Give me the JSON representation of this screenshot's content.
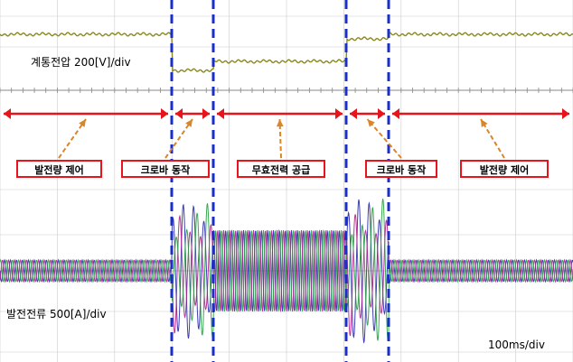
{
  "chart_data": {
    "type": "line",
    "time_scale": "100ms/div",
    "panels": [
      {
        "label": "계통전압 200[V]/div",
        "series": [
          {
            "color": "#8a8a20",
            "segments": [
              {
                "t_start": 0,
                "t_end": 190,
                "level": 0
              },
              {
                "t_start": 190,
                "t_end": 236,
                "level": -40
              },
              {
                "t_start": 236,
                "t_end": 383,
                "level": -30
              },
              {
                "t_start": 383,
                "t_end": 430,
                "level": -5
              },
              {
                "t_start": 430,
                "t_end": 634,
                "level": 0
              }
            ]
          }
        ]
      },
      {
        "label": "발전전류 500[A]/div",
        "series": [
          {
            "color": "#2a2aa8",
            "phase": 0
          },
          {
            "color": "#b0208a",
            "phase": 120
          },
          {
            "color": "#25a040",
            "phase": 240
          }
        ],
        "amplitude_segments": [
          {
            "t_start": 0,
            "t_end": 190,
            "amplitude": 12
          },
          {
            "t_start": 190,
            "t_end": 236,
            "amplitude": 75
          },
          {
            "t_start": 236,
            "t_end": 383,
            "amplitude": 45
          },
          {
            "t_start": 383,
            "t_end": 430,
            "amplitude": 80
          },
          {
            "t_start": 430,
            "t_end": 634,
            "amplitude": 12
          }
        ]
      }
    ],
    "event_markers_t": [
      190,
      236,
      383,
      430
    ],
    "modes": [
      {
        "label": "발전량 제어",
        "t_start": 0,
        "t_end": 190
      },
      {
        "label": "크로바 동작",
        "t_start": 190,
        "t_end": 236
      },
      {
        "label": "무효전력 공급",
        "t_start": 236,
        "t_end": 383
      },
      {
        "label": "크로바 동작",
        "t_start": 383,
        "t_end": 430
      },
      {
        "label": "발전량 제어",
        "t_start": 430,
        "t_end": 634
      }
    ],
    "grid": true,
    "colors": {
      "marker": "#1a2ec8",
      "annotation": "#e8141b",
      "pointer": "#d9862b",
      "grid": "#cccccc"
    }
  }
}
